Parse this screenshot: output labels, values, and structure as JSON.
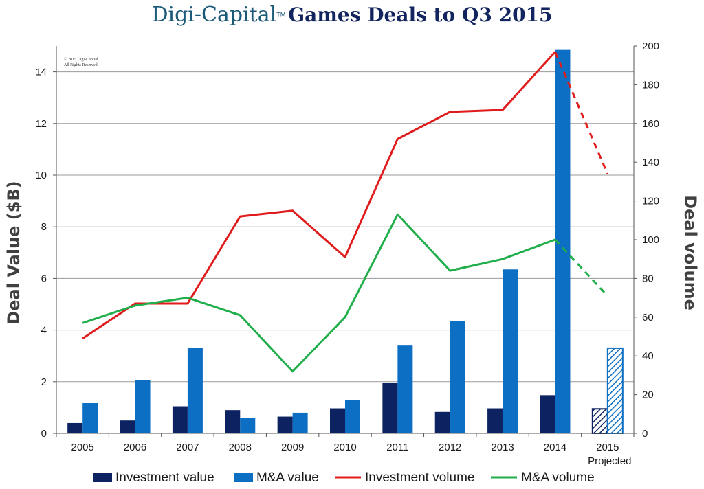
{
  "title": {
    "brand": "Digi-Capital",
    "trademark": "TM",
    "text": "Games Deals to Q3 2015"
  },
  "copyright": {
    "line1": "© 2015 Digi-Capital",
    "line2": "All Rights Reserved"
  },
  "colors": {
    "investment_value": "#0d2260",
    "ma_value": "#0d6fc4",
    "investment_volume": "#e01b1b",
    "ma_volume": "#1fae4a",
    "grid": "#9a9a9a"
  },
  "chart_data": {
    "type": "bar",
    "categories": [
      "2005",
      "2006",
      "2007",
      "2008",
      "2009",
      "2010",
      "2011",
      "2012",
      "2013",
      "2014",
      "2015"
    ],
    "category_sublabels": [
      "",
      "",
      "",
      "",
      "",
      "",
      "",
      "",
      "",
      "",
      "Projected"
    ],
    "projected_index": 10,
    "series": [
      {
        "name": "Investment value",
        "type": "bar",
        "axis": "left",
        "values": [
          0.4,
          0.5,
          1.05,
          0.9,
          0.65,
          0.97,
          1.95,
          0.83,
          0.97,
          1.48,
          0.95
        ]
      },
      {
        "name": "M&A value",
        "type": "bar",
        "axis": "left",
        "values": [
          1.17,
          2.05,
          3.3,
          0.6,
          0.8,
          1.28,
          3.4,
          4.35,
          6.35,
          14.85,
          3.3
        ]
      },
      {
        "name": "Investment volume",
        "type": "line",
        "axis": "right",
        "values": [
          49,
          67,
          67,
          112,
          115,
          91,
          152,
          166,
          167,
          197,
          134
        ]
      },
      {
        "name": "M&A volume",
        "type": "line",
        "axis": "right",
        "values": [
          57,
          66,
          70,
          61,
          32,
          60,
          113,
          84,
          90,
          100,
          71
        ]
      }
    ],
    "ylabel": "Deal Value ($B)",
    "ylim": [
      0,
      15
    ],
    "yticks": [
      0,
      2,
      4,
      6,
      8,
      10,
      12,
      14
    ],
    "y2label": "Deal volume",
    "y2lim": [
      0,
      200
    ],
    "y2ticks": [
      0,
      20,
      40,
      60,
      80,
      100,
      120,
      140,
      160,
      180,
      200
    ],
    "legend": {
      "position": "bottom",
      "items": [
        "Investment value",
        "M&A value",
        "Investment volume",
        "M&A volume"
      ]
    }
  }
}
